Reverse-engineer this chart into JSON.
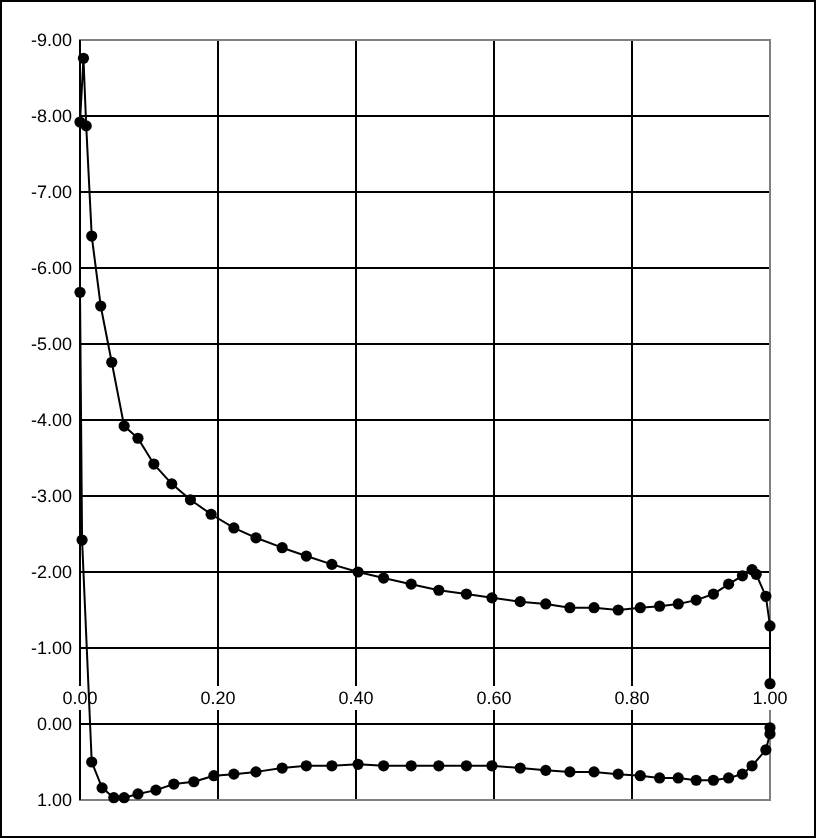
{
  "chart_data": {
    "type": "line",
    "marker": "circle",
    "grid": true,
    "xlim": [
      0,
      1
    ],
    "xticks": [
      {
        "value": 0,
        "label": "0.00"
      },
      {
        "value": 0.2,
        "label": "0.20"
      },
      {
        "value": 0.4,
        "label": "0.40"
      },
      {
        "value": 0.6,
        "label": "0.60"
      },
      {
        "value": 0.8,
        "label": "0.80"
      },
      {
        "value": 1,
        "label": "1.00"
      }
    ],
    "ylim": [
      1,
      -9
    ],
    "yticks": [
      {
        "value": 1,
        "label": "1.00"
      },
      {
        "value": 0,
        "label": "0.00"
      },
      {
        "value": -1,
        "label": "-1.00"
      },
      {
        "value": -2,
        "label": "-2.00"
      },
      {
        "value": -3,
        "label": "-3.00"
      },
      {
        "value": -4,
        "label": "-4.00"
      },
      {
        "value": -5,
        "label": "-5.00"
      },
      {
        "value": -6,
        "label": "-6.00"
      },
      {
        "value": -7,
        "label": "-7.00"
      },
      {
        "value": -8,
        "label": "-8.00"
      },
      {
        "value": -9,
        "label": "-9.00"
      }
    ],
    "series": [
      {
        "color": "#000000",
        "x": [
          1.0,
          1.0,
          0.994,
          0.98,
          0.974,
          0.96,
          0.94,
          0.918,
          0.893,
          0.867,
          0.84,
          0.812,
          0.78,
          0.745,
          0.71,
          0.675,
          0.638,
          0.597,
          0.56,
          0.52,
          0.48,
          0.44,
          0.403,
          0.365,
          0.328,
          0.293,
          0.255,
          0.223,
          0.19,
          0.16,
          0.133,
          0.107,
          0.084,
          0.064,
          0.046,
          0.03,
          0.017,
          0.009,
          0.005,
          0.0,
          0.0,
          0.003,
          0.017,
          0.032,
          0.049,
          0.064,
          0.084,
          0.11,
          0.136,
          0.165,
          0.194,
          0.223,
          0.255,
          0.293,
          0.328,
          0.365,
          0.403,
          0.44,
          0.48,
          0.52,
          0.56,
          0.597,
          0.638,
          0.675,
          0.71,
          0.745,
          0.78,
          0.812,
          0.84,
          0.867,
          0.893,
          0.918,
          0.94,
          0.96,
          0.974,
          0.994,
          1.0,
          1.0
        ],
        "values": [
          -0.53,
          -1.29,
          -1.68,
          -1.97,
          -2.03,
          -1.95,
          -1.84,
          -1.71,
          -1.63,
          -1.58,
          -1.55,
          -1.53,
          -1.5,
          -1.53,
          -1.53,
          -1.58,
          -1.61,
          -1.66,
          -1.71,
          -1.76,
          -1.84,
          -1.92,
          -2.0,
          -2.1,
          -2.21,
          -2.32,
          -2.45,
          -2.58,
          -2.76,
          -2.95,
          -3.16,
          -3.42,
          -3.76,
          -3.92,
          -4.76,
          -5.5,
          -6.42,
          -7.87,
          -8.76,
          -7.92,
          -5.68,
          -2.42,
          0.5,
          0.84,
          0.97,
          0.97,
          0.92,
          0.87,
          0.79,
          0.76,
          0.68,
          0.66,
          0.63,
          0.58,
          0.55,
          0.55,
          0.53,
          0.55,
          0.55,
          0.55,
          0.55,
          0.55,
          0.58,
          0.61,
          0.63,
          0.63,
          0.66,
          0.68,
          0.71,
          0.71,
          0.74,
          0.74,
          0.71,
          0.66,
          0.55,
          0.34,
          0.13,
          0.05
        ]
      }
    ]
  }
}
